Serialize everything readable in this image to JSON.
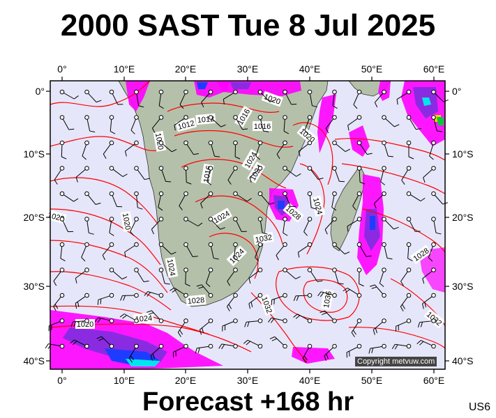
{
  "title": "2000 SAST Tue 8 Jul 2025",
  "forecast": "Forecast +168 hr",
  "region_code": "US6",
  "copyright": "Copyright metvuw.com",
  "axes": {
    "lon_labels": [
      "0°",
      "10°E",
      "20°E",
      "30°E",
      "40°E",
      "50°E",
      "60°E"
    ],
    "lat_labels_left": [
      "0°",
      "10°S",
      "20°S",
      "30°S",
      "40°S"
    ],
    "lat_labels_right": [
      "0°",
      "10°S",
      "20°S",
      "30°S",
      "40°S"
    ]
  },
  "isobar_labels": [
    "1020",
    "1012",
    "1012",
    "1016",
    "1016",
    "1020",
    "1020",
    "1016",
    "1020",
    "1024",
    "1020",
    "1024",
    "1028",
    "1024",
    "1024",
    "1032",
    "1024",
    "1028",
    "1036",
    "1032",
    "1028",
    "1032",
    "1020",
    "1024",
    "1024"
  ],
  "colors": {
    "sea": "#e6e6fa",
    "land": "#b5c0ab",
    "isobar": "#ff0000",
    "precip_magenta": "#ff00ff",
    "precip_purple": "#8a2be2",
    "precip_blue": "#1e3cff",
    "precip_cyan": "#00e5ee"
  }
}
